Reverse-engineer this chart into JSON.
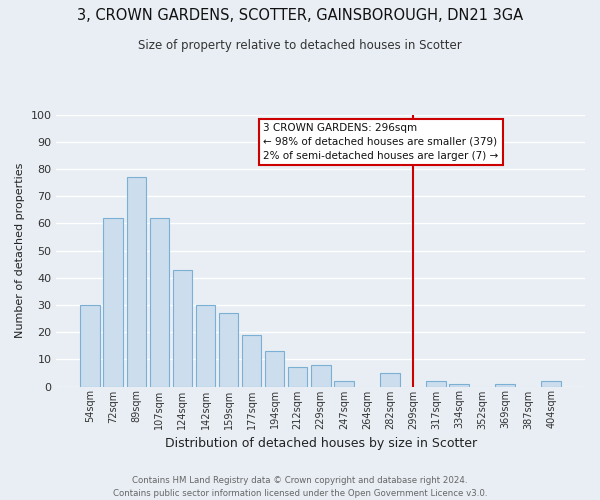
{
  "title": "3, CROWN GARDENS, SCOTTER, GAINSBOROUGH, DN21 3GA",
  "subtitle": "Size of property relative to detached houses in Scotter",
  "xlabel": "Distribution of detached houses by size in Scotter",
  "ylabel": "Number of detached properties",
  "bar_labels": [
    "54sqm",
    "72sqm",
    "89sqm",
    "107sqm",
    "124sqm",
    "142sqm",
    "159sqm",
    "177sqm",
    "194sqm",
    "212sqm",
    "229sqm",
    "247sqm",
    "264sqm",
    "282sqm",
    "299sqm",
    "317sqm",
    "334sqm",
    "352sqm",
    "369sqm",
    "387sqm",
    "404sqm"
  ],
  "bar_values": [
    30,
    62,
    77,
    62,
    43,
    30,
    27,
    19,
    13,
    7,
    8,
    2,
    0,
    5,
    0,
    2,
    1,
    0,
    1,
    0,
    2
  ],
  "bar_color": "#ccdded",
  "bar_edge_color": "#7bafd4",
  "ylim": [
    0,
    100
  ],
  "yticks": [
    0,
    10,
    20,
    30,
    40,
    50,
    60,
    70,
    80,
    90,
    100
  ],
  "vline_x": 14,
  "vline_color": "#cc0000",
  "annotation_title": "3 CROWN GARDENS: 296sqm",
  "annotation_line1": "← 98% of detached houses are smaller (379)",
  "annotation_line2": "2% of semi-detached houses are larger (7) →",
  "annotation_box_edge": "#cc0000",
  "footer_line1": "Contains HM Land Registry data © Crown copyright and database right 2024.",
  "footer_line2": "Contains public sector information licensed under the Open Government Licence v3.0.",
  "background_color": "#e8eef4",
  "plot_bg_color": "#e8eef4",
  "grid_color": "#ffffff"
}
